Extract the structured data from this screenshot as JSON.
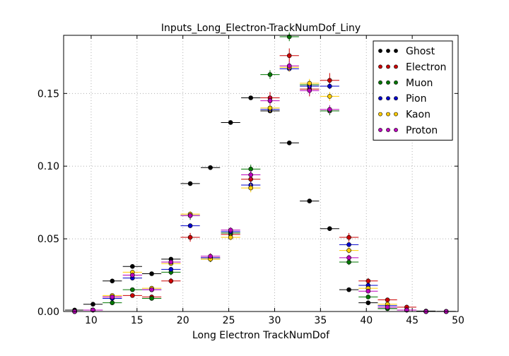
{
  "chart_data": {
    "type": "scatter",
    "title": "Inputs_Long_Electron-TrackNumDof_Liny",
    "xlabel": "Long Electron TrackNumDof",
    "ylabel": "",
    "xlim": [
      7,
      50
    ],
    "ylim": [
      0,
      0.19
    ],
    "x_ticks": [
      10,
      15,
      20,
      25,
      30,
      35,
      40,
      45,
      50
    ],
    "y_ticks": [
      0.0,
      0.05,
      0.1,
      0.15
    ],
    "x_tick_labels": [
      "10",
      "15",
      "20",
      "25",
      "30",
      "35",
      "40",
      "45",
      "50"
    ],
    "y_tick_labels": [
      "0.00",
      "0.05",
      "0.10",
      "0.15"
    ],
    "grid": true,
    "legend_position": "top-right",
    "x": [
      8.2,
      10.2,
      12.3,
      14.5,
      16.6,
      18.7,
      20.8,
      23.0,
      25.2,
      27.4,
      29.5,
      31.6,
      33.8,
      36.0,
      38.1,
      40.2,
      42.3,
      44.4,
      46.5,
      48.7
    ],
    "x_bin_half_width": 1.05,
    "series": [
      {
        "name": "Ghost",
        "color": "#000000",
        "values": [
          0.001,
          0.005,
          0.021,
          0.031,
          0.026,
          0.036,
          0.088,
          0.099,
          0.13,
          0.147,
          0.138,
          0.116,
          0.076,
          0.057,
          0.015,
          0.006,
          0.002,
          0.001,
          0.0003,
          0.0001
        ],
        "errors": [
          0,
          0,
          0.0005,
          0.0005,
          0.0005,
          0.0005,
          0.0008,
          0.0008,
          0.0008,
          0.0008,
          0.0008,
          0.0008,
          0.0006,
          0.0005,
          0.0003,
          0.0002,
          0,
          0,
          0,
          0
        ]
      },
      {
        "name": "Electron",
        "color": "#cc0000",
        "values": [
          0.0,
          0.001,
          0.01,
          0.011,
          0.01,
          0.021,
          0.051,
          0.037,
          0.053,
          0.091,
          0.147,
          0.176,
          0.153,
          0.159,
          0.051,
          0.021,
          0.008,
          0.003,
          0.0,
          0.0
        ],
        "errors": [
          0,
          0.0005,
          0.001,
          0.001,
          0.001,
          0.002,
          0.003,
          0.003,
          0.003,
          0.004,
          0.004,
          0.005,
          0.005,
          0.005,
          0.003,
          0.002,
          0.001,
          0.001,
          0,
          0
        ]
      },
      {
        "name": "Muon",
        "color": "#007700",
        "values": [
          0.0,
          0.001,
          0.006,
          0.015,
          0.009,
          0.027,
          0.066,
          0.036,
          0.054,
          0.098,
          0.163,
          0.189,
          0.156,
          0.138,
          0.034,
          0.01,
          0.002,
          0.001,
          0.0,
          0.0
        ],
        "errors": [
          0,
          0.0005,
          0.001,
          0.001,
          0.001,
          0.002,
          0.003,
          0.002,
          0.002,
          0.003,
          0.003,
          0.003,
          0.003,
          0.003,
          0.002,
          0.001,
          0.0005,
          0,
          0,
          0
        ]
      },
      {
        "name": "Pion",
        "color": "#0000cc",
        "values": [
          0.0,
          0.001,
          0.009,
          0.023,
          0.015,
          0.029,
          0.059,
          0.037,
          0.055,
          0.087,
          0.139,
          0.167,
          0.155,
          0.155,
          0.046,
          0.018,
          0.004,
          0.001,
          0.0,
          0.0
        ],
        "errors": [
          0,
          0.0005,
          0.0008,
          0.001,
          0.001,
          0.001,
          0.0015,
          0.0012,
          0.0015,
          0.002,
          0.002,
          0.002,
          0.002,
          0.002,
          0.0012,
          0.0008,
          0.0005,
          0,
          0,
          0
        ]
      },
      {
        "name": "Kaon",
        "color": "#ffcc00",
        "values": [
          0.0,
          0.001,
          0.011,
          0.027,
          0.016,
          0.033,
          0.067,
          0.036,
          0.051,
          0.085,
          0.14,
          0.168,
          0.157,
          0.148,
          0.042,
          0.016,
          0.005,
          0.001,
          0.0,
          0.0
        ],
        "errors": [
          0,
          0.0005,
          0.001,
          0.0015,
          0.001,
          0.0015,
          0.002,
          0.0015,
          0.002,
          0.003,
          0.003,
          0.003,
          0.003,
          0.003,
          0.002,
          0.001,
          0.0008,
          0,
          0,
          0
        ]
      },
      {
        "name": "Proton",
        "color": "#bb00bb",
        "values": [
          0.0,
          0.001,
          0.01,
          0.025,
          0.015,
          0.034,
          0.066,
          0.038,
          0.056,
          0.094,
          0.145,
          0.169,
          0.152,
          0.139,
          0.037,
          0.014,
          0.003,
          0.001,
          0.0,
          0.0
        ],
        "errors": [
          0,
          0.0005,
          0.001,
          0.0015,
          0.001,
          0.0015,
          0.002,
          0.0015,
          0.002,
          0.003,
          0.003,
          0.003,
          0.003,
          0.003,
          0.002,
          0.001,
          0.0006,
          0,
          0,
          0
        ]
      }
    ]
  }
}
